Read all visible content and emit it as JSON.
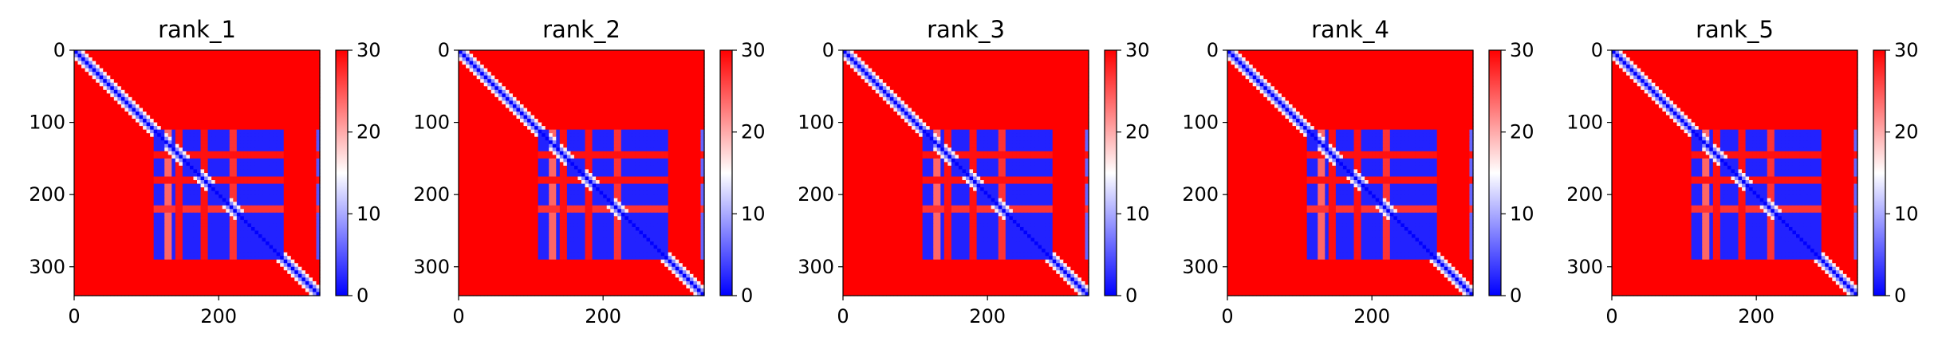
{
  "colormap": {
    "name": "bwr",
    "low_color": "#0000ff",
    "mid_color": "#ffffff",
    "high_color": "#ff0000"
  },
  "chart_data": [
    {
      "type": "heatmap",
      "title": "rank_1",
      "xlim": [
        0,
        340
      ],
      "ylim": [
        340,
        0
      ],
      "xticks": [
        0,
        200
      ],
      "yticks": [
        0,
        100,
        200,
        300
      ],
      "colorbar": {
        "min": 0,
        "max": 30,
        "ticks": [
          0,
          10,
          20,
          30
        ]
      },
      "matrix_size": 340,
      "diagonal_value": 0,
      "background_value": 30,
      "low_blocks": [
        {
          "x": [
            112,
            290
          ],
          "y": [
            112,
            290
          ],
          "value": 2
        },
        {
          "x": [
            335,
            340
          ],
          "y": [
            112,
            290
          ],
          "value": 5
        }
      ],
      "high_bands": [
        {
          "axis": "both",
          "at": [
            140,
            152
          ],
          "value": 29
        },
        {
          "axis": "both",
          "at": [
            173,
            185
          ],
          "value": 29
        },
        {
          "axis": "both",
          "at": [
            215,
            224
          ],
          "value": 27
        },
        {
          "axis": "x",
          "at": [
            126,
            136
          ],
          "value": 24
        }
      ]
    },
    {
      "type": "heatmap",
      "title": "rank_2",
      "xlim": [
        0,
        340
      ],
      "ylim": [
        340,
        0
      ],
      "xticks": [
        0,
        200
      ],
      "yticks": [
        0,
        100,
        200,
        300
      ],
      "colorbar": {
        "min": 0,
        "max": 30,
        "ticks": [
          0,
          10,
          20,
          30
        ]
      },
      "matrix_size": 340,
      "diagonal_value": 0,
      "background_value": 30,
      "low_blocks": [
        {
          "x": [
            110,
            292
          ],
          "y": [
            110,
            292
          ],
          "value": 2
        },
        {
          "x": [
            335,
            340
          ],
          "y": [
            112,
            290
          ],
          "value": 6
        }
      ],
      "high_bands": [
        {
          "axis": "both",
          "at": [
            140,
            152
          ],
          "value": 29
        },
        {
          "axis": "both",
          "at": [
            173,
            185
          ],
          "value": 29
        },
        {
          "axis": "both",
          "at": [
            215,
            224
          ],
          "value": 27
        },
        {
          "axis": "x",
          "at": [
            126,
            136
          ],
          "value": 24
        }
      ]
    },
    {
      "type": "heatmap",
      "title": "rank_3",
      "xlim": [
        0,
        340
      ],
      "ylim": [
        340,
        0
      ],
      "xticks": [
        0,
        200
      ],
      "yticks": [
        0,
        100,
        200,
        300
      ],
      "colorbar": {
        "min": 0,
        "max": 30,
        "ticks": [
          0,
          10,
          20,
          30
        ]
      },
      "matrix_size": 340,
      "diagonal_value": 0,
      "background_value": 30,
      "low_blocks": [
        {
          "x": [
            110,
            292
          ],
          "y": [
            110,
            292
          ],
          "value": 2
        },
        {
          "x": [
            335,
            340
          ],
          "y": [
            112,
            290
          ],
          "value": 6
        }
      ],
      "high_bands": [
        {
          "axis": "both",
          "at": [
            140,
            152
          ],
          "value": 29
        },
        {
          "axis": "both",
          "at": [
            173,
            185
          ],
          "value": 29
        },
        {
          "axis": "both",
          "at": [
            215,
            224
          ],
          "value": 27
        },
        {
          "axis": "x",
          "at": [
            126,
            136
          ],
          "value": 24
        }
      ]
    },
    {
      "type": "heatmap",
      "title": "rank_4",
      "xlim": [
        0,
        340
      ],
      "ylim": [
        340,
        0
      ],
      "xticks": [
        0,
        200
      ],
      "yticks": [
        0,
        100,
        200,
        300
      ],
      "colorbar": {
        "min": 0,
        "max": 30,
        "ticks": [
          0,
          10,
          20,
          30
        ]
      },
      "matrix_size": 340,
      "diagonal_value": 0,
      "background_value": 30,
      "low_blocks": [
        {
          "x": [
            110,
            292
          ],
          "y": [
            110,
            292
          ],
          "value": 2
        },
        {
          "x": [
            335,
            340
          ],
          "y": [
            112,
            290
          ],
          "value": 6
        }
      ],
      "high_bands": [
        {
          "axis": "both",
          "at": [
            140,
            152
          ],
          "value": 29
        },
        {
          "axis": "both",
          "at": [
            173,
            185
          ],
          "value": 29
        },
        {
          "axis": "both",
          "at": [
            215,
            224
          ],
          "value": 27
        },
        {
          "axis": "x",
          "at": [
            126,
            136
          ],
          "value": 24
        }
      ]
    },
    {
      "type": "heatmap",
      "title": "rank_5",
      "xlim": [
        0,
        340
      ],
      "ylim": [
        340,
        0
      ],
      "xticks": [
        0,
        200
      ],
      "yticks": [
        0,
        100,
        200,
        300
      ],
      "colorbar": {
        "min": 0,
        "max": 30,
        "ticks": [
          0,
          10,
          20,
          30
        ]
      },
      "matrix_size": 340,
      "diagonal_value": 0,
      "background_value": 30,
      "low_blocks": [
        {
          "x": [
            110,
            292
          ],
          "y": [
            110,
            292
          ],
          "value": 2
        },
        {
          "x": [
            335,
            340
          ],
          "y": [
            112,
            290
          ],
          "value": 6
        }
      ],
      "high_bands": [
        {
          "axis": "both",
          "at": [
            140,
            152
          ],
          "value": 29
        },
        {
          "axis": "both",
          "at": [
            173,
            185
          ],
          "value": 29
        },
        {
          "axis": "both",
          "at": [
            215,
            224
          ],
          "value": 27
        },
        {
          "axis": "x",
          "at": [
            126,
            136
          ],
          "value": 24
        }
      ]
    }
  ]
}
